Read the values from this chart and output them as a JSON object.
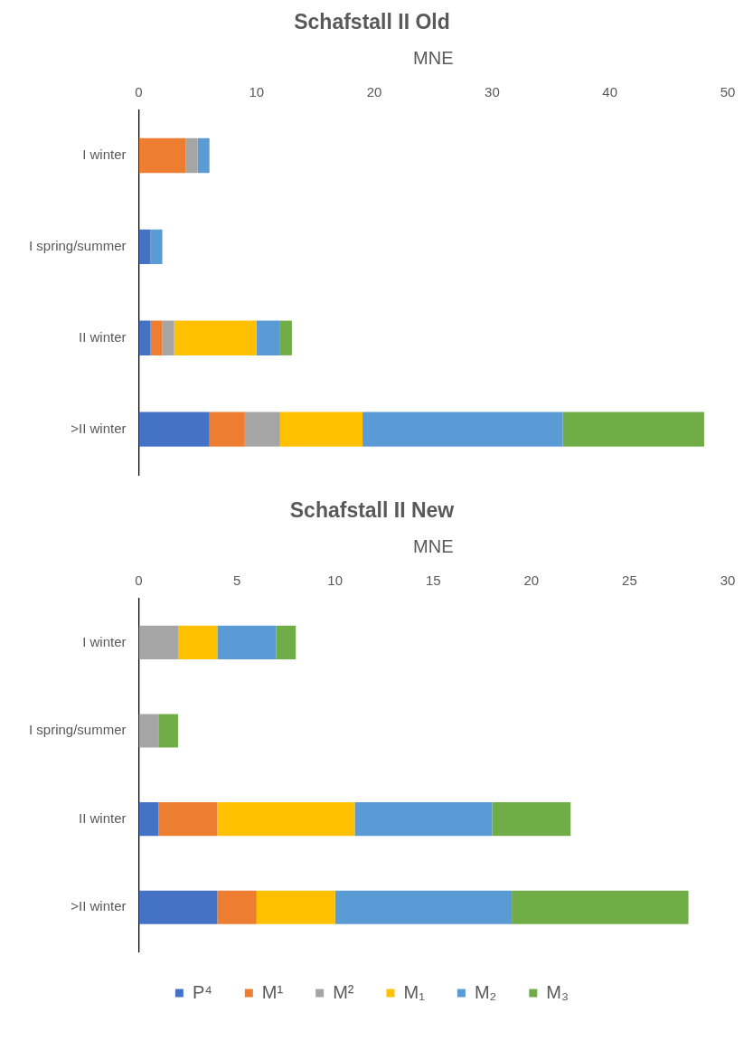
{
  "chart_data": [
    {
      "type": "bar",
      "title": "Schafstall II Old",
      "xlabel": "MNE",
      "orientation": "horizontal",
      "stacked": true,
      "categories": [
        "I winter",
        "I spring/summer",
        "II winter",
        ">II winter"
      ],
      "xlim": [
        0,
        50
      ],
      "xticks": [
        0,
        10,
        20,
        30,
        40,
        50
      ],
      "grid": false,
      "legend": false,
      "series": [
        {
          "color": "#4472c4",
          "values": [
            0,
            1,
            1,
            6
          ]
        },
        {
          "color": "#ed7d31",
          "values": [
            4,
            0,
            1,
            3
          ]
        },
        {
          "color": "#a5a5a5",
          "values": [
            1,
            0,
            1,
            3
          ]
        },
        {
          "color": "#ffc000",
          "values": [
            0,
            0,
            7,
            7
          ]
        },
        {
          "color": "#5b9bd5",
          "values": [
            1,
            1,
            2,
            17
          ]
        },
        {
          "color": "#70ad47",
          "values": [
            0,
            0,
            1,
            12
          ]
        }
      ]
    },
    {
      "type": "bar",
      "title": "Schafstall II New",
      "xlabel": "MNE",
      "orientation": "horizontal",
      "stacked": true,
      "categories": [
        "I winter",
        "I spring/summer",
        "II winter",
        ">II winter"
      ],
      "xlim": [
        0,
        30
      ],
      "xticks": [
        0,
        5,
        10,
        15,
        20,
        25,
        30
      ],
      "grid": false,
      "legend": "bottom",
      "series": [
        {
          "name": "P⁴",
          "color": "#4472c4",
          "values": [
            0,
            0,
            1,
            4
          ]
        },
        {
          "name": "M¹",
          "color": "#ed7d31",
          "values": [
            0,
            0,
            3,
            2
          ]
        },
        {
          "name": "M²",
          "color": "#a5a5a5",
          "values": [
            2,
            1,
            0,
            0
          ]
        },
        {
          "name": "M₁",
          "color": "#ffc000",
          "values": [
            2,
            0,
            7,
            4
          ]
        },
        {
          "name": "M₂",
          "color": "#5b9bd5",
          "values": [
            3,
            0,
            7,
            9
          ]
        },
        {
          "name": "M₃",
          "color": "#70ad47",
          "values": [
            1,
            1,
            4,
            9
          ]
        }
      ]
    }
  ]
}
